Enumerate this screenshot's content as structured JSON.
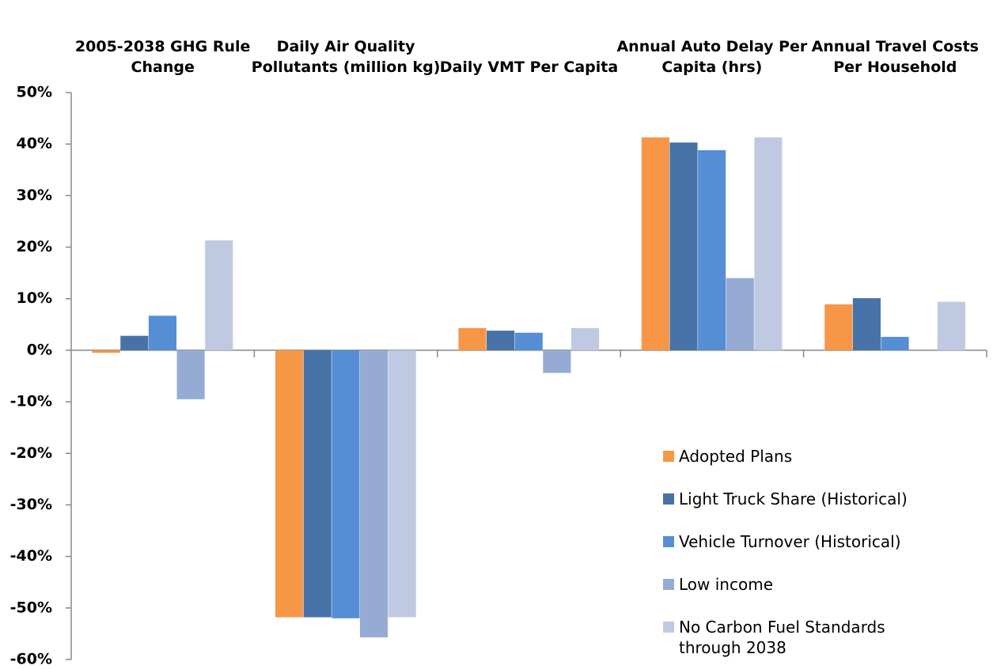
{
  "chart_data": {
    "type": "bar",
    "categories": [
      "2005-2038 GHG Rule Change",
      "Daily Air Quality Pollutants (million kg)",
      "Daily VMT Per Capita",
      "Annual Auto Delay Per Capita (hrs)",
      "Annual Travel Costs Per Household"
    ],
    "series": [
      {
        "name": "Adopted Plans",
        "color": "#f79646",
        "values": [
          -0.5,
          -51.8,
          4.3,
          41.3,
          8.9
        ]
      },
      {
        "name": "Light Truck Share (Historical)",
        "color": "#4672a8",
        "values": [
          2.8,
          -51.8,
          3.8,
          40.3,
          10.1
        ]
      },
      {
        "name": "Vehicle Turnover (Historical)",
        "color": "#558ed5",
        "values": [
          6.7,
          -52.0,
          3.4,
          38.8,
          2.6
        ]
      },
      {
        "name": "Low income",
        "color": "#95abd4",
        "values": [
          -9.5,
          -55.7,
          -4.4,
          14.0,
          null
        ]
      },
      {
        "name": "No Carbon Fuel Standards through 2038",
        "color": "#bfc9e2",
        "values": [
          21.3,
          -51.8,
          4.3,
          41.3,
          9.4
        ]
      }
    ],
    "ylim": [
      -60,
      50
    ],
    "yticks": [
      {
        "value": -60,
        "label": "-60%"
      },
      {
        "value": -50,
        "label": "-50%"
      },
      {
        "value": -40,
        "label": "-40%"
      },
      {
        "value": -30,
        "label": "-30%"
      },
      {
        "value": -20,
        "label": "-20%"
      },
      {
        "value": -10,
        "label": "-10%"
      },
      {
        "value": 0,
        "label": "0%"
      },
      {
        "value": 10,
        "label": "10%"
      },
      {
        "value": 20,
        "label": "20%"
      },
      {
        "value": 30,
        "label": "30%"
      },
      {
        "value": 40,
        "label": "40%"
      },
      {
        "value": 50,
        "label": "50%"
      }
    ],
    "legend": "lower right"
  }
}
